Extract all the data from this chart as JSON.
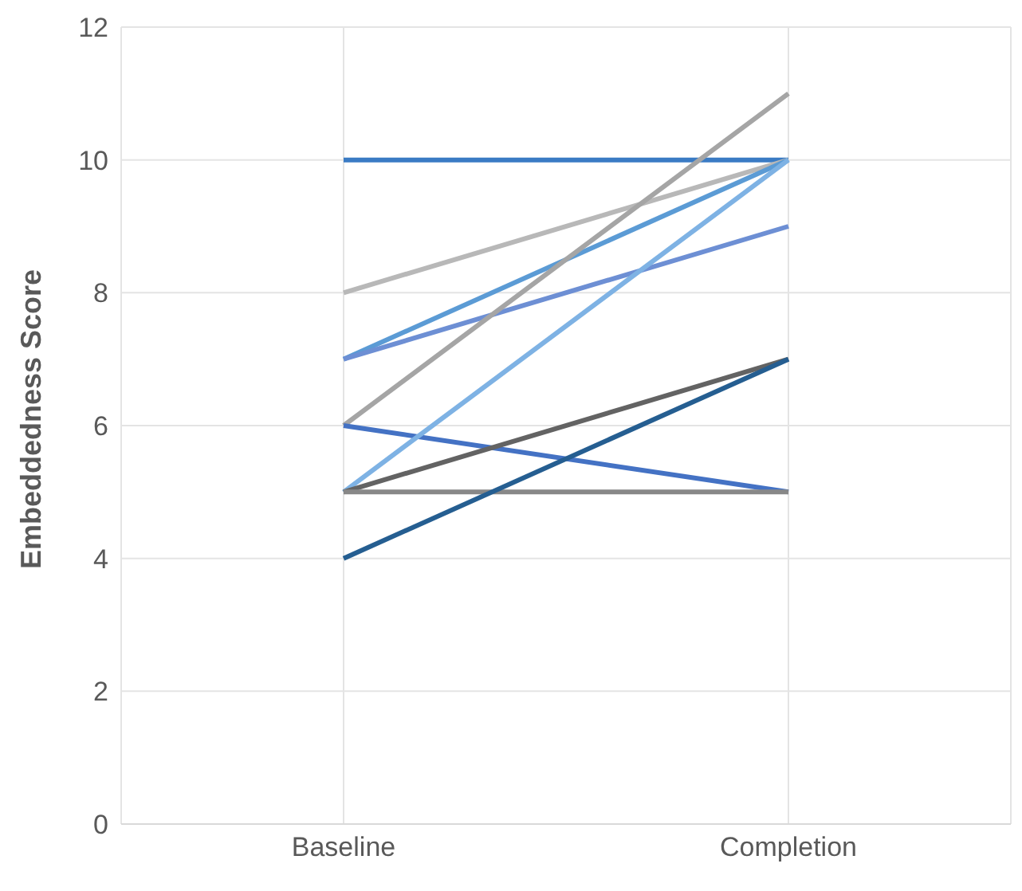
{
  "chart_data": {
    "type": "line",
    "ylabel": "Embeddedness Score",
    "categories": [
      "Baseline",
      "Completion"
    ],
    "ylim": [
      0,
      12
    ],
    "yticks": [
      0,
      2,
      4,
      6,
      8,
      10,
      12
    ],
    "grid": true,
    "legend": false,
    "marker": "none",
    "line_style": "solid",
    "series": [
      {
        "color": "#3a7bc4",
        "values": [
          10,
          10
        ]
      },
      {
        "color": "#b8b8b8",
        "values": [
          8,
          10
        ]
      },
      {
        "color": "#5b9bd5",
        "values": [
          7,
          10
        ]
      },
      {
        "color": "#6d8fd4",
        "values": [
          7,
          9
        ]
      },
      {
        "color": "#a5a5a5",
        "values": [
          6,
          11
        ]
      },
      {
        "color": "#4472c4",
        "values": [
          6,
          5
        ]
      },
      {
        "color": "#7eb2e4",
        "values": [
          5,
          10
        ]
      },
      {
        "color": "#636363",
        "values": [
          5,
          7
        ]
      },
      {
        "color": "#888888",
        "values": [
          5,
          5
        ]
      },
      {
        "color": "#255e91",
        "values": [
          4,
          7
        ]
      }
    ]
  }
}
